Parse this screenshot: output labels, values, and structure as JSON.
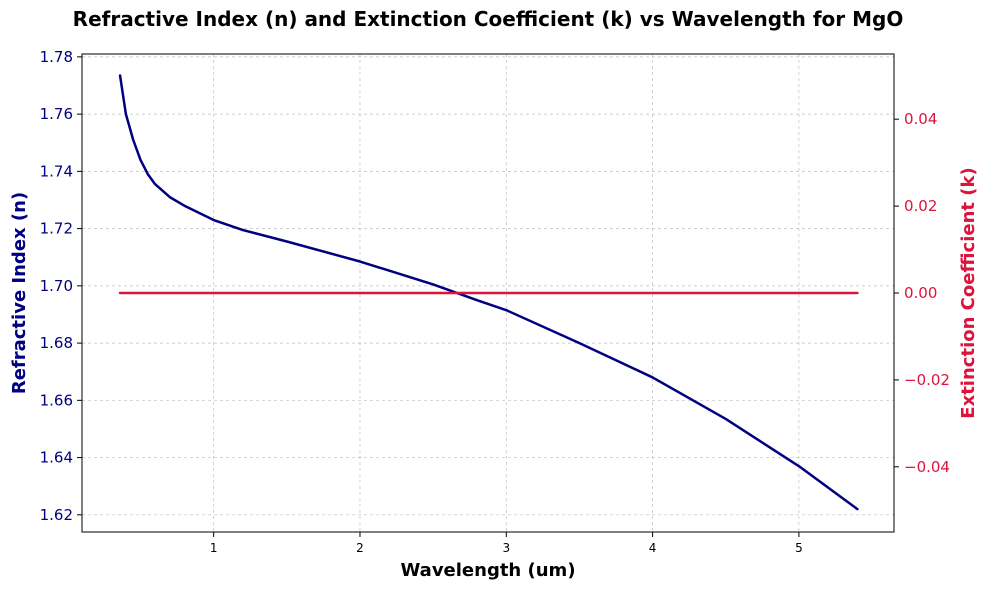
{
  "chart_data": {
    "type": "line",
    "title": "Refractive Index (n) and Extinction Coefficient (k) vs Wavelength for MgO",
    "xlabel": "Wavelength (um)",
    "ylabel_left": "Refractive Index (n)",
    "ylabel_right": "Extinction Coefficient (k)",
    "xlim": [
      0.1,
      5.65
    ],
    "ylim_left": [
      1.614,
      1.781
    ],
    "ylim_right": [
      -0.055,
      0.055
    ],
    "x_ticks": [
      "1",
      "2",
      "3",
      "4",
      "5"
    ],
    "y_left_ticks": [
      "1.62",
      "1.64",
      "1.66",
      "1.68",
      "1.70",
      "1.72",
      "1.74",
      "1.76",
      "1.78"
    ],
    "y_right_ticks": [
      "−0.04",
      "−0.02",
      "0.00",
      "0.02",
      "0.04"
    ],
    "grid": true,
    "colors": {
      "n": "#000080",
      "k": "#dc143c"
    },
    "series": [
      {
        "axis": "left",
        "color": "#000080",
        "x": [
          0.36,
          0.4,
          0.45,
          0.5,
          0.55,
          0.6,
          0.7,
          0.8,
          1.0,
          1.2,
          1.5,
          2.0,
          2.5,
          2.8,
          3.0,
          3.5,
          4.0,
          4.5,
          5.0,
          5.4
        ],
        "y": [
          1.7735,
          1.76,
          1.751,
          1.744,
          1.739,
          1.7355,
          1.731,
          1.728,
          1.723,
          1.7195,
          1.7155,
          1.7085,
          1.7005,
          1.695,
          1.6915,
          1.68,
          1.668,
          1.6535,
          1.637,
          1.622
        ]
      },
      {
        "axis": "right",
        "color": "#dc143c",
        "x": [
          0.36,
          5.4
        ],
        "y": [
          0.0,
          0.0
        ]
      }
    ]
  }
}
